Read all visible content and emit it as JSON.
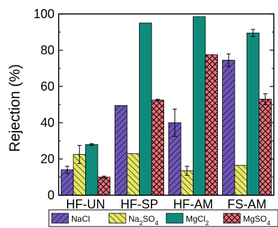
{
  "chart_data": {
    "type": "bar",
    "title": "",
    "xlabel": "",
    "ylabel": "Rejection (%)",
    "ylim": [
      0,
      100
    ],
    "yticks": [
      "0",
      "20",
      "40",
      "60",
      "80",
      "100"
    ],
    "categories": [
      "HF-UN",
      "HF-SP",
      "HF-AM",
      "FS-AM"
    ],
    "series": [
      {
        "name": "NaCl",
        "values": [
          14,
          49.5,
          40,
          74.5
        ],
        "errors": [
          2,
          0,
          7.5,
          3.5
        ],
        "color": "#6f55b8",
        "pattern": "diag-right"
      },
      {
        "name": "Na2SO4",
        "values": [
          22.5,
          23,
          13.5,
          16.5
        ],
        "errors": [
          5,
          0,
          2.5,
          0
        ],
        "color": "#e6e667",
        "pattern": "diag-left"
      },
      {
        "name": "MgCl2",
        "values": [
          28,
          95,
          98.5,
          89.5
        ],
        "errors": [
          0.5,
          0,
          0,
          2
        ],
        "color": "#0f8b7c",
        "pattern": "none"
      },
      {
        "name": "MgSO4",
        "values": [
          10,
          52.5,
          77.5,
          53
        ],
        "errors": [
          0.5,
          0.5,
          0,
          3
        ],
        "color": "#ec6f78",
        "pattern": "cross"
      }
    ],
    "legend": {
      "placement": "bottom",
      "entries": [
        {
          "base": "NaCl",
          "sub": "",
          "rest": ""
        },
        {
          "base": "Na",
          "sub": "2",
          "rest": "SO",
          "sub2": "4"
        },
        {
          "base": "MgCl",
          "sub": "2",
          "rest": ""
        },
        {
          "base": "MgSO",
          "sub": "4",
          "rest": ""
        }
      ]
    },
    "grid": false
  }
}
